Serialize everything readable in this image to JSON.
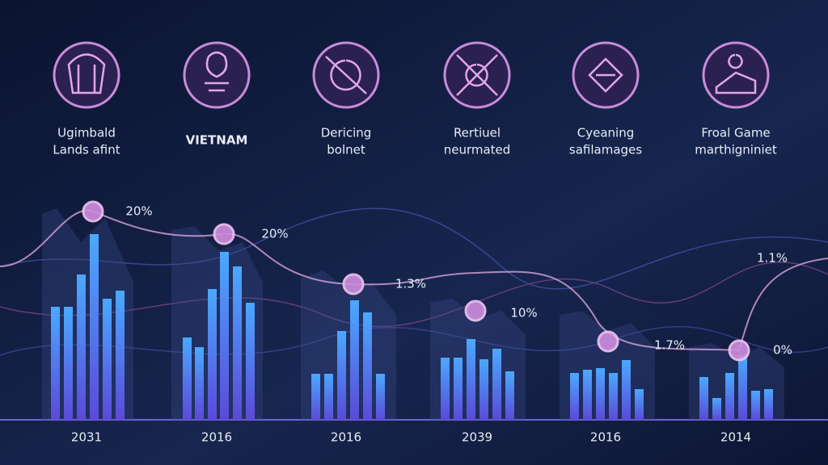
{
  "items": [
    {
      "label": [
        "Ugimbald",
        "Lands afint"
      ],
      "year": "2031",
      "callout": "20%"
    },
    {
      "label": [
        "VIETNAM"
      ],
      "year": "2016",
      "callout": "20%"
    },
    {
      "label": [
        "Dericing",
        "bolnet"
      ],
      "year": "2016",
      "callout": "1.3%"
    },
    {
      "label": [
        "Rertiuel",
        "neurmated"
      ],
      "year": "2039",
      "callout": "10%"
    },
    {
      "label": [
        "Cyeaning",
        "safilamages"
      ],
      "year": "2016",
      "callout": "1.7%"
    },
    {
      "label": [
        "Froal Game",
        "marthigniniet"
      ],
      "year": "2014",
      "callout": "0%"
    }
  ],
  "extra_callout": "1.1%"
}
